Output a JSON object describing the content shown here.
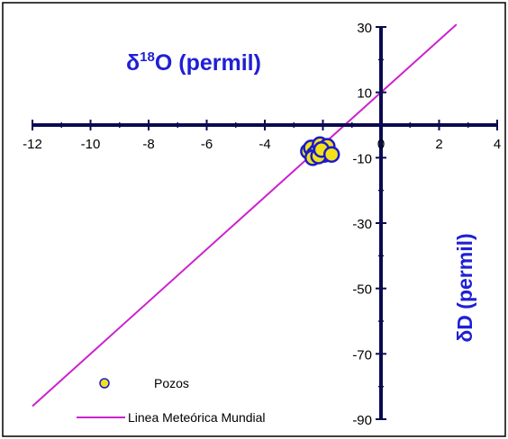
{
  "chart_data": {
    "type": "scatter",
    "xlim": [
      -12,
      4
    ],
    "ylim": [
      -90,
      30
    ],
    "x_ticks": [
      -12,
      -10,
      -8,
      -6,
      -4,
      -2,
      0,
      2,
      4
    ],
    "y_ticks": [
      30,
      10,
      -10,
      -30,
      -50,
      -70,
      -90
    ],
    "x_tick_labels": [
      "-12",
      "-10",
      "-8",
      "-6",
      "-4",
      "-2",
      "0",
      "2",
      "4"
    ],
    "y_tick_labels": [
      "30",
      "10",
      "-10",
      "-30",
      "-50",
      "-70",
      "-90"
    ],
    "x_axis_title": {
      "delta": "δ",
      "sup": "18",
      "rest": "O (permil)"
    },
    "y_axis_title": "δD (permil)",
    "grid": false,
    "legend_position": "bottom-left",
    "series": [
      {
        "name": "Pozos",
        "kind": "points",
        "color": "#f2e21c",
        "edge_color": "#1a1acc",
        "points": [
          [
            -2.5,
            -8
          ],
          [
            -2.4,
            -7
          ],
          [
            -2.3,
            -9
          ],
          [
            -2.2,
            -8
          ],
          [
            -2.1,
            -6
          ],
          [
            -2.0,
            -8
          ],
          [
            -1.95,
            -9
          ],
          [
            -1.9,
            -7
          ],
          [
            -1.8,
            -8.5
          ],
          [
            -2.35,
            -10
          ],
          [
            -2.15,
            -9.5
          ],
          [
            -1.85,
            -6.5
          ],
          [
            -2.05,
            -7.5
          ],
          [
            -1.7,
            -9
          ]
        ]
      },
      {
        "name": "Linea Meteórica Mundial",
        "kind": "line",
        "color": "#cc22cc",
        "slope": 8,
        "intercept": 10,
        "x_range": [
          -12,
          2.6
        ]
      }
    ]
  }
}
